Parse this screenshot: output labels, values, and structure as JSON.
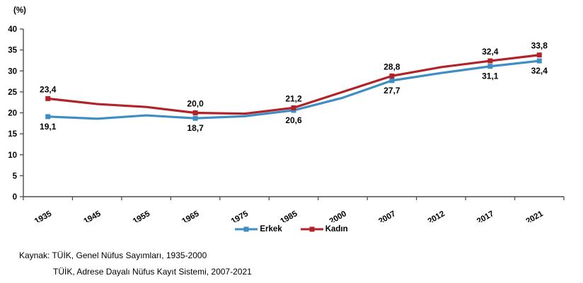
{
  "axis_unit_label": "(%)",
  "chart_data": {
    "type": "line",
    "title": "",
    "xlabel": "",
    "ylabel": "(%)",
    "ylim": [
      0,
      40
    ],
    "y_ticks": [
      0,
      5,
      10,
      15,
      20,
      25,
      30,
      35,
      40
    ],
    "grid": false,
    "legend_position": "bottom",
    "categories": [
      "1935",
      "1945",
      "1955",
      "1965",
      "1975",
      "1985",
      "2000",
      "2007",
      "2012",
      "2017",
      "2021"
    ],
    "series": [
      {
        "name": "Erkek",
        "key": "erkek",
        "color": "#3E8EC4",
        "label_position": "below",
        "values": [
          19.1,
          18.6,
          19.4,
          18.7,
          19.2,
          20.6,
          23.6,
          27.7,
          29.5,
          31.1,
          32.4
        ],
        "labels": {
          "0": "19,1",
          "3": "18,7",
          "5": "20,6",
          "7": "27,7",
          "9": "31,1",
          "10": "32,4"
        }
      },
      {
        "name": "Kadın",
        "key": "kadin",
        "color": "#B02328",
        "label_position": "above",
        "values": [
          23.4,
          22.1,
          21.4,
          20.0,
          19.8,
          21.2,
          25.0,
          28.8,
          30.9,
          32.4,
          33.8
        ],
        "labels": {
          "0": "23,4",
          "3": "20,0",
          "5": "21,2",
          "7": "28,8",
          "9": "32,4",
          "10": "33,8"
        }
      }
    ],
    "axis_color": "#4d4d4d"
  },
  "source": {
    "line1": "Kaynak: TÜİK, Genel Nüfus Sayımları, 1935-2000",
    "line2": "TÜİK, Adrese Dayalı Nüfus Kayıt Sistemi, 2007-2021"
  }
}
